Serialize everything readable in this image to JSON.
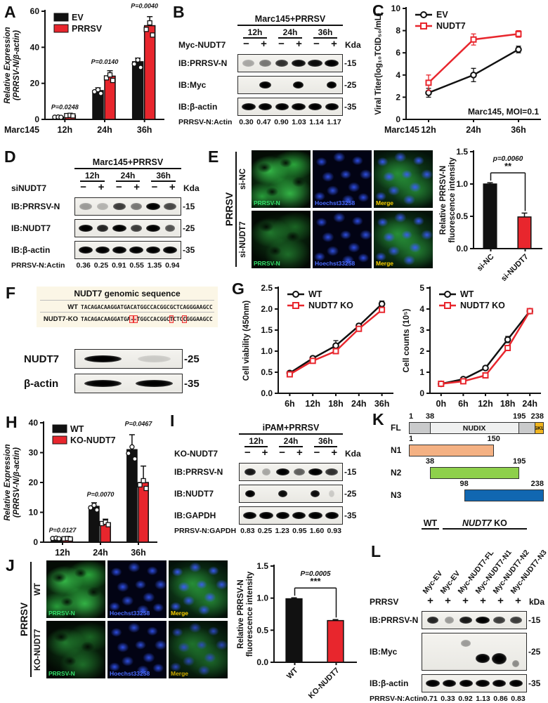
{
  "colors": {
    "red": "#e8262d",
    "black": "#111111"
  },
  "panels": {
    "A": "A",
    "B": "B",
    "C": "C",
    "D": "D",
    "E": "E",
    "F": "F",
    "G": "G",
    "H": "H",
    "I": "I",
    "J": "J",
    "K": "K",
    "L": "L"
  },
  "chart_data": {
    "A": {
      "type": "bar",
      "categories": [
        "12h",
        "24h",
        "36h"
      ],
      "xprefix": "Marc145",
      "xprefix_edge": true,
      "series": [
        {
          "name": "EV",
          "color": "#111111",
          "values": [
            1.3,
            16,
            32
          ],
          "err": [
            0.4,
            1.5,
            2
          ]
        },
        {
          "name": "PRRSV",
          "color": "#e8262d",
          "values": [
            2.2,
            24,
            52
          ],
          "err": [
            0.6,
            3,
            5
          ]
        }
      ],
      "pvalues": [
        "P=0.0248",
        "P=0.0140",
        "P=0.0040"
      ],
      "ylabel": [
        "Relative Expression",
        "(PRRSV-N/β-actin)"
      ],
      "yitalic": true,
      "ylim": [
        0,
        60
      ],
      "yticks": [
        0,
        20,
        40,
        60
      ]
    },
    "C": {
      "type": "line",
      "x": [
        "12h",
        "24h",
        "36h"
      ],
      "xprefix": "Marc145",
      "series": [
        {
          "name": "EV",
          "color": "#111111",
          "marker": "circle",
          "values": [
            2.4,
            4.0,
            6.3
          ],
          "err": [
            0.4,
            0.6,
            0.3
          ]
        },
        {
          "name": "NUDT7",
          "color": "#e8262d",
          "marker": "square",
          "values": [
            3.3,
            7.2,
            7.7
          ],
          "err": [
            0.7,
            0.5,
            0.3
          ]
        }
      ],
      "annotation": "Marc145, MOI=0.1",
      "ylabel": [
        "Viral Titer(log₁₀TCID₅₀/mL)"
      ],
      "ylim": [
        0,
        10
      ],
      "yticks": [
        0,
        2,
        4,
        6,
        8,
        10
      ]
    },
    "E": {
      "type": "bar",
      "categories": [
        "si-NC",
        "si-NUDT7"
      ],
      "rotateX": true,
      "points": false,
      "legend": false,
      "series": [
        {
          "name": "",
          "colors": [
            "#111111",
            "#e8262d"
          ],
          "values": [
            1.0,
            0.49
          ],
          "err": [
            0.02,
            0.06
          ]
        }
      ],
      "bracket": {
        "text": "p=0.0060",
        "stars": "**"
      },
      "ylabel": [
        "Relative PRRSV-N",
        "fluorescence intensity"
      ],
      "ylim": [
        0,
        1.5
      ],
      "yticks": [
        0,
        0.5,
        1.0,
        1.5
      ],
      "ydec": 1
    },
    "G1": {
      "type": "line",
      "x": [
        "6h",
        "12h",
        "18h",
        "24h",
        "36h"
      ],
      "series": [
        {
          "name": "WT",
          "color": "#111111",
          "marker": "circle",
          "values": [
            0.48,
            0.83,
            1.13,
            1.6,
            2.12
          ],
          "err": [
            0.03,
            0.05,
            0.12,
            0.05,
            0.07
          ]
        },
        {
          "name": "NUDT7 KO",
          "color": "#e8262d",
          "marker": "square",
          "values": [
            0.45,
            0.77,
            1.0,
            1.53,
            1.98
          ],
          "err": [
            0.03,
            0.04,
            0.06,
            0.05,
            0.06
          ]
        }
      ],
      "ylabel": [
        "Cell viability (450nm)"
      ],
      "ylim": [
        0,
        2.5
      ],
      "yticks": [
        0,
        0.5,
        1.0,
        1.5,
        2.0,
        2.5
      ],
      "ydec": 1
    },
    "G2": {
      "type": "line",
      "x": [
        "0h",
        "6h",
        "12h",
        "18h",
        "24h"
      ],
      "series": [
        {
          "name": "WT",
          "color": "#111111",
          "marker": "circle",
          "values": [
            0.45,
            0.67,
            1.2,
            2.55,
            3.9
          ],
          "err": [
            0.03,
            0.05,
            0.07,
            0.15,
            0.1
          ]
        },
        {
          "name": "NUDT7 KO",
          "color": "#e8262d",
          "marker": "square",
          "values": [
            0.45,
            0.57,
            0.85,
            2.15,
            3.9
          ],
          "err": [
            0.03,
            0.04,
            0.05,
            0.12,
            0.1
          ]
        }
      ],
      "ylabel": [
        "Cell counts (10⁵)"
      ],
      "ylim": [
        0,
        5
      ],
      "yticks": [
        0,
        1,
        2,
        3,
        4,
        5
      ]
    },
    "H": {
      "type": "bar",
      "categories": [
        "12h",
        "24h",
        "36h"
      ],
      "series": [
        {
          "name": "WT",
          "color": "#111111",
          "values": [
            1.3,
            12,
            31
          ],
          "err": [
            0.3,
            1.2,
            5
          ]
        },
        {
          "name": "KO-NUDT7",
          "color": "#e8262d",
          "values": [
            1.2,
            6.5,
            20
          ],
          "err": [
            0.3,
            1.2,
            5.5
          ]
        }
      ],
      "pvalues": [
        "P=0.0127",
        "P=0.0070",
        "P=0.0467"
      ],
      "ylabel": [
        "Relative Expression",
        "(PRRSV-N/β-actin)"
      ],
      "yitalic": true,
      "ylim": [
        0,
        40
      ],
      "yticks": [
        0,
        10,
        20,
        30,
        40
      ]
    },
    "J": {
      "type": "bar",
      "categories": [
        "WT",
        "KO-NUDT7"
      ],
      "rotateX": true,
      "points": false,
      "legend": false,
      "series": [
        {
          "name": "",
          "colors": [
            "#111111",
            "#e8262d"
          ],
          "values": [
            0.99,
            0.65
          ],
          "err": [
            0.015,
            0.015
          ]
        }
      ],
      "bracket": {
        "text": "P=0.0005",
        "stars": "***"
      },
      "ylabel": [
        "Relative PRRSV-N",
        "fluorescence intensity"
      ],
      "ylim": [
        0,
        1.5
      ],
      "yticks": [
        0,
        0.5,
        1.0,
        1.5
      ],
      "ydec": 1
    }
  },
  "blots": {
    "B": {
      "title": "Marc145+PRRSV",
      "groups": [
        "12h",
        "24h",
        "36h"
      ],
      "condition_label": "Myc-NUDT7",
      "conditions": [
        "−",
        "+",
        "−",
        "+",
        "−",
        "+"
      ],
      "kda_label": "Kda",
      "rows": [
        {
          "label": "IB:PRRSV-N",
          "kda": "15",
          "bands": [
            {
              "w": 0.85,
              "o": 0.3
            },
            {
              "w": 0.85,
              "o": 0.5
            },
            {
              "w": 0.9,
              "o": 0.8
            },
            {
              "w": 0.95,
              "o": 0.95
            },
            {
              "w": 1,
              "o": 0.95
            },
            {
              "w": 1,
              "o": 1
            }
          ]
        },
        {
          "label": "IB:Myc",
          "kda": "25",
          "bands": [
            {
              "o": 0
            },
            {
              "w": 0.8,
              "o": 1
            },
            {
              "o": 0
            },
            {
              "w": 0.75,
              "o": 1
            },
            {
              "o": 0
            },
            {
              "w": 0.7,
              "o": 1
            }
          ]
        },
        {
          "label": "IB:β-actin",
          "kda": "35",
          "bands": [
            {
              "w": 0.95,
              "o": 1
            },
            {
              "w": 0.95,
              "o": 1
            },
            {
              "w": 0.95,
              "o": 1
            },
            {
              "w": 0.95,
              "o": 1
            },
            {
              "w": 0.95,
              "o": 1
            },
            {
              "w": 0.95,
              "o": 1
            }
          ]
        }
      ],
      "ratio_label": "PRRSV-N:Actin",
      "ratios": [
        "0.30",
        "0.47",
        "0.90",
        "1.03",
        "1.14",
        "1.17"
      ]
    },
    "D": {
      "title": "Marc145+PRRSV",
      "groups": [
        "12h",
        "24h",
        "36h"
      ],
      "condition_label": "siNUDT7",
      "conditions": [
        "−",
        "+",
        "−",
        "+",
        "−",
        "+"
      ],
      "kda_label": "Kda",
      "rows": [
        {
          "label": "IB:PRRSV-N",
          "kda": "15",
          "bands": [
            {
              "w": 0.85,
              "o": 0.35
            },
            {
              "w": 0.8,
              "o": 0.25
            },
            {
              "w": 0.9,
              "o": 0.75
            },
            {
              "w": 0.8,
              "o": 0.5
            },
            {
              "w": 0.95,
              "o": 1
            },
            {
              "w": 0.85,
              "o": 0.7
            }
          ]
        },
        {
          "label": "IB:NUDT7",
          "kda": "25",
          "bands": [
            {
              "w": 0.95,
              "o": 1
            },
            {
              "w": 0.8,
              "o": 0.85
            },
            {
              "w": 0.95,
              "o": 1
            },
            {
              "w": 0.8,
              "o": 0.75
            },
            {
              "w": 0.95,
              "o": 1
            },
            {
              "w": 0.7,
              "o": 0.65
            }
          ]
        },
        {
          "label": "IB:β-actin",
          "kda": "35",
          "bands": [
            {
              "w": 0.95,
              "o": 1
            },
            {
              "w": 0.95,
              "o": 1
            },
            {
              "w": 0.95,
              "o": 1
            },
            {
              "w": 0.95,
              "o": 1
            },
            {
              "w": 0.95,
              "o": 1
            },
            {
              "w": 0.95,
              "o": 1
            }
          ]
        }
      ],
      "ratio_label": "PRRSV-N:Actin",
      "ratios": [
        "0.36",
        "0.25",
        "0.91",
        "0.55",
        "1.35",
        "0.94"
      ]
    },
    "F": {
      "rows": [
        {
          "label": "NUDT7",
          "kda": "25",
          "bands": [
            {
              "w": 0.85,
              "o": 1
            },
            {
              "w": 0.75,
              "o": 0.15
            }
          ]
        },
        {
          "label": "β-actin",
          "kda": "35",
          "bands": [
            {
              "w": 0.85,
              "o": 1
            },
            {
              "w": 0.85,
              "o": 1
            }
          ]
        }
      ]
    },
    "I": {
      "title": "iPAM+PRRSV",
      "groups": [
        "12h",
        "24h",
        "36h"
      ],
      "condition_label": "KO-NUDT7",
      "conditions": [
        "−",
        "+",
        "−",
        "+",
        "−",
        "+"
      ],
      "kda_label": "Kda",
      "rows": [
        {
          "label": "IB:PRRSV-N",
          "kda": "15",
          "bands": [
            {
              "w": 0.8,
              "o": 0.9
            },
            {
              "w": 0.55,
              "o": 0.3
            },
            {
              "w": 0.95,
              "o": 1
            },
            {
              "w": 0.8,
              "o": 0.6
            },
            {
              "w": 1,
              "o": 1
            },
            {
              "w": 0.9,
              "o": 0.8
            }
          ]
        },
        {
          "label": "IB:NUDT7",
          "kda": "25",
          "bands": [
            {
              "w": 0.7,
              "o": 1
            },
            {
              "o": 0
            },
            {
              "w": 0.65,
              "o": 0.95
            },
            {
              "o": 0
            },
            {
              "w": 0.65,
              "o": 0.95
            },
            {
              "w": 0.4,
              "o": 0.15
            }
          ]
        },
        {
          "label": "IB:GAPDH",
          "kda": "35",
          "bands": [
            {
              "w": 0.95,
              "o": 1
            },
            {
              "w": 0.95,
              "o": 1
            },
            {
              "w": 0.95,
              "o": 1
            },
            {
              "w": 0.95,
              "o": 1
            },
            {
              "w": 0.95,
              "o": 1
            },
            {
              "w": 0.95,
              "o": 1
            }
          ]
        }
      ],
      "ratio_label": "PRRSV-N:GAPDH",
      "ratios": [
        "0.83",
        "0.25",
        "1.23",
        "0.95",
        "1.60",
        "0.93"
      ]
    },
    "L": {
      "header_wt": "WT",
      "header_ko_gene": "NUDT7",
      "header_ko_rest": " KO",
      "lane_labels": [
        "Myc-EV",
        "Myc-EV",
        "Myc-NUDT7-FL",
        "Myc-NUDT7-N1",
        "Myc-NUDT7-N2",
        "Myc-NUDT7-N3"
      ],
      "condition_label": "PRRSV",
      "conditions": [
        "+",
        "+",
        "+",
        "+",
        "+",
        "+"
      ],
      "kda_label": "kDa",
      "rows": [
        {
          "label": "IB:PRRSV-N",
          "kda": "15",
          "bands": [
            {
              "w": 0.8,
              "o": 0.85
            },
            {
              "w": 0.6,
              "o": 0.35
            },
            {
              "w": 0.9,
              "o": 0.9
            },
            {
              "w": 0.95,
              "o": 1
            },
            {
              "w": 0.85,
              "o": 0.75
            },
            {
              "w": 0.85,
              "o": 0.75
            }
          ]
        },
        {
          "label": "IB:Myc",
          "kda": "25",
          "h": 54,
          "bands": [
            {
              "o": 0
            },
            {
              "o": 0
            },
            {
              "w": 0.7,
              "o": 0.35,
              "dy": -12
            },
            {
              "w": 0.95,
              "o": 1,
              "dy": 10,
              "hh": 13
            },
            {
              "w": 1,
              "o": 1,
              "dy": 10,
              "hh": 16
            },
            {
              "w": 0.5,
              "o": 0.4,
              "dy": 17
            }
          ]
        },
        {
          "label": "IB:β-actin",
          "kda": "35",
          "bands": [
            {
              "w": 0.95,
              "o": 1
            },
            {
              "w": 0.95,
              "o": 1
            },
            {
              "w": 0.95,
              "o": 1
            },
            {
              "w": 0.95,
              "o": 1
            },
            {
              "w": 0.95,
              "o": 1
            },
            {
              "w": 0.95,
              "o": 1
            }
          ]
        }
      ],
      "ratio_label": "PRRSV-N:Actin",
      "ratios": [
        "0.71",
        "0.33",
        "0.92",
        "1.13",
        "0.86",
        "0.83"
      ]
    }
  },
  "micro": {
    "E": {
      "side": "PRRSV",
      "rows": [
        "si-NC",
        "si-NUDT7"
      ],
      "cols": [
        "PRRSV-N",
        "Hoechst33258",
        "Merge"
      ],
      "variants": [
        [
          "green",
          "blue",
          "merge"
        ],
        [
          "green2",
          "blue",
          "merge"
        ]
      ]
    },
    "J": {
      "side": "PRRSV",
      "rows": [
        "WT",
        "KO-NUDT7"
      ],
      "cols": [
        "PRRSV-N",
        "Hoechst33258",
        "Merge"
      ],
      "variants": [
        [
          "green",
          "blue",
          "merge"
        ],
        [
          "green2",
          "blue",
          "merge2"
        ]
      ]
    }
  },
  "seq": {
    "title": "NUDT7 genomic sequence",
    "rows": [
      {
        "name": "WT",
        "seq": "TACAGACAAGGATGACATGGCCACGGCGCTCAGGGAAGCC",
        "boxed": []
      },
      {
        "name": "NUDT7-KO",
        "seq": "TACAGACAAGGATGA--TGGCCACGGCTCTCCGGGAAGCC",
        "boxed": [
          15,
          16,
          27,
          31
        ]
      }
    ]
  },
  "domains": {
    "max": 238,
    "rows": [
      {
        "name": "FL",
        "start": 1,
        "end": 238,
        "ticks": [
          1,
          38,
          195,
          238
        ],
        "segments": [
          {
            "from": 1,
            "to": 38,
            "color": "#c9cacb"
          },
          {
            "from": 38,
            "to": 195,
            "color": "#eff0f0",
            "text": "NUDIX"
          },
          {
            "from": 195,
            "to": 224,
            "color": "#c9cacb"
          },
          {
            "from": 224,
            "to": 238,
            "color": "#f1b51f",
            "text": "SKL",
            "small": true
          }
        ]
      },
      {
        "name": "N1",
        "start": 1,
        "end": 150,
        "ticks": [
          1,
          150
        ],
        "color": "#f4b183"
      },
      {
        "name": "N2",
        "start": 38,
        "end": 195,
        "ticks": [
          38,
          195
        ],
        "color": "#8ed04b"
      },
      {
        "name": "N3",
        "start": 98,
        "end": 238,
        "ticks": [
          98,
          238
        ],
        "color": "#1167b1"
      }
    ]
  }
}
